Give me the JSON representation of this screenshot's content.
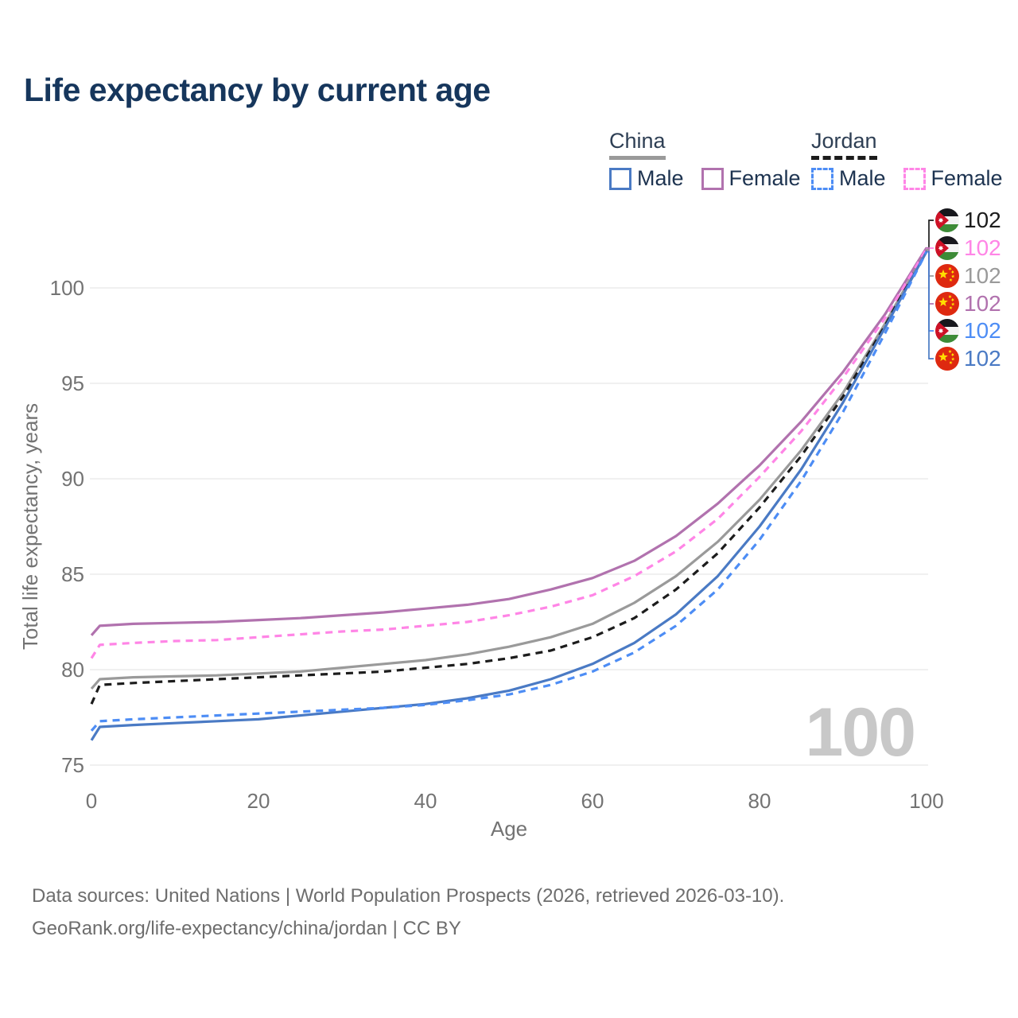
{
  "title": "Life expectancy by current age",
  "legend": {
    "groups": [
      {
        "label": "China",
        "underline_color": "#9a9a9a",
        "underline_style": "solid",
        "items": [
          {
            "label": "Male",
            "color": "#4a7ac4",
            "dash": "solid"
          },
          {
            "label": "Female",
            "color": "#b172ae",
            "dash": "solid"
          }
        ]
      },
      {
        "label": "Jordan",
        "underline_color": "#1c1c1c",
        "underline_style": "dashed",
        "items": [
          {
            "label": "Male",
            "color": "#4d8df5",
            "dash": "dashed"
          },
          {
            "label": "Female",
            "color": "#ff85e6",
            "dash": "dashed"
          }
        ]
      }
    ]
  },
  "colors": {
    "title": "#16365c",
    "axis_text": "#737373",
    "grid": "#e6e6e6",
    "watermark": "#c8c8c8",
    "legend_text": "#1d3350",
    "jordan_flag_red": "#ce1126",
    "jordan_flag_green": "#3d8b37",
    "china_flag_red": "#de2910",
    "flag_star_yellow": "#ffde00"
  },
  "chart_data": {
    "type": "line",
    "title": "Life expectancy by current age",
    "xlabel": "Age",
    "ylabel": "Total life expectancy, years",
    "xlim": [
      0,
      100
    ],
    "ylim": [
      75,
      102.5
    ],
    "xticks": [
      0,
      20,
      40,
      60,
      80,
      100
    ],
    "yticks": [
      75,
      80,
      85,
      90,
      95,
      100
    ],
    "grid": "horizontal",
    "legend_position": "top-right",
    "age_counter": "100",
    "x": [
      0,
      1,
      5,
      10,
      15,
      20,
      25,
      30,
      35,
      40,
      45,
      50,
      55,
      60,
      65,
      70,
      75,
      80,
      85,
      90,
      95,
      100
    ],
    "series": [
      {
        "name": "China",
        "country": "china",
        "sex": "both",
        "color": "#9a9a9a",
        "dash": "solid",
        "end_label": "102",
        "values": [
          79.0,
          79.5,
          79.6,
          79.65,
          79.7,
          79.8,
          79.9,
          80.1,
          80.3,
          80.5,
          80.8,
          81.2,
          81.7,
          82.4,
          83.5,
          84.9,
          86.7,
          88.9,
          91.5,
          94.5,
          98.1,
          102.0
        ]
      },
      {
        "name": "Jordan",
        "country": "jordan",
        "sex": "both",
        "color": "#1c1c1c",
        "dash": "dashed",
        "end_label": "102",
        "values": [
          78.2,
          79.2,
          79.3,
          79.4,
          79.5,
          79.6,
          79.7,
          79.8,
          79.9,
          80.1,
          80.3,
          80.6,
          81.0,
          81.7,
          82.7,
          84.2,
          86.1,
          88.5,
          91.2,
          94.3,
          98.0,
          102.0
        ]
      },
      {
        "name": "China Female",
        "country": "china",
        "sex": "female",
        "color": "#b172ae",
        "dash": "solid",
        "end_label": "102",
        "values": [
          81.8,
          82.3,
          82.4,
          82.45,
          82.5,
          82.6,
          82.7,
          82.85,
          83.0,
          83.2,
          83.4,
          83.7,
          84.2,
          84.8,
          85.7,
          87.0,
          88.7,
          90.7,
          93.0,
          95.6,
          98.6,
          102.1
        ]
      },
      {
        "name": "Jordan Female",
        "country": "jordan",
        "sex": "female",
        "color": "#ff85e6",
        "dash": "dashed",
        "end_label": "102",
        "values": [
          80.6,
          81.3,
          81.4,
          81.5,
          81.55,
          81.7,
          81.85,
          82.0,
          82.1,
          82.3,
          82.5,
          82.85,
          83.3,
          83.9,
          84.9,
          86.2,
          87.9,
          90.1,
          92.5,
          95.3,
          98.4,
          102.05
        ]
      },
      {
        "name": "China Male",
        "country": "china",
        "sex": "male",
        "color": "#4a7ac4",
        "dash": "solid",
        "end_label": "102",
        "values": [
          76.3,
          77.0,
          77.1,
          77.2,
          77.3,
          77.4,
          77.6,
          77.8,
          78.0,
          78.2,
          78.5,
          78.9,
          79.5,
          80.3,
          81.4,
          82.9,
          84.9,
          87.5,
          90.5,
          94.0,
          97.9,
          101.9
        ]
      },
      {
        "name": "Jordan Male",
        "country": "jordan",
        "sex": "male",
        "color": "#4d8df5",
        "dash": "dashed",
        "end_label": "102",
        "values": [
          76.8,
          77.3,
          77.4,
          77.5,
          77.6,
          77.7,
          77.8,
          77.9,
          78.0,
          78.15,
          78.4,
          78.7,
          79.2,
          79.9,
          80.9,
          82.3,
          84.2,
          86.8,
          89.9,
          93.5,
          97.6,
          101.9
        ]
      }
    ],
    "end_labels": [
      {
        "series": "Jordan",
        "country": "jordan",
        "value": "102",
        "color": "#1c1c1c"
      },
      {
        "series": "Jordan Female",
        "country": "jordan",
        "value": "102",
        "color": "#ff85e6"
      },
      {
        "series": "China",
        "country": "china",
        "value": "102",
        "color": "#9a9a9a"
      },
      {
        "series": "China Female",
        "country": "china",
        "value": "102",
        "color": "#b172ae"
      },
      {
        "series": "Jordan Male",
        "country": "jordan",
        "value": "102",
        "color": "#4d8df5"
      },
      {
        "series": "China Male",
        "country": "china",
        "value": "102",
        "color": "#4a7ac4"
      }
    ]
  },
  "footer": {
    "line1": "Data sources: United Nations | World Population Prospects (2026, retrieved 2026-03-10).",
    "line2": "GeoRank.org/life-expectancy/china/jordan | CC BY"
  }
}
